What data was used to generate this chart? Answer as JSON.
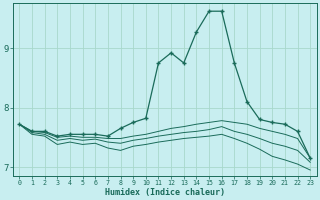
{
  "xlabel": "Humidex (Indice chaleur)",
  "bg_color": "#c8eef0",
  "grid_color": "#a8d8cc",
  "line_color": "#1a6b5a",
  "xlim": [
    -0.5,
    23.5
  ],
  "ylim": [
    6.85,
    9.75
  ],
  "yticks": [
    7,
    8,
    9
  ],
  "xticks": [
    0,
    1,
    2,
    3,
    4,
    5,
    6,
    7,
    8,
    9,
    10,
    11,
    12,
    13,
    14,
    15,
    16,
    17,
    18,
    19,
    20,
    21,
    22,
    23
  ],
  "main_line_x": [
    0,
    1,
    2,
    3,
    4,
    5,
    6,
    7,
    8,
    9,
    10,
    11,
    12,
    13,
    14,
    15,
    16,
    17,
    18,
    19,
    20,
    21,
    22,
    23
  ],
  "main_line_y": [
    7.72,
    7.6,
    7.6,
    7.52,
    7.55,
    7.55,
    7.55,
    7.52,
    7.65,
    7.75,
    7.82,
    8.75,
    8.92,
    8.75,
    9.27,
    9.62,
    9.62,
    8.75,
    8.1,
    7.8,
    7.75,
    7.72,
    7.6,
    7.15
  ],
  "line2_x": [
    0,
    1,
    2,
    3,
    4,
    5,
    6,
    7,
    8,
    9,
    10,
    11,
    12,
    13,
    14,
    15,
    16,
    17,
    18,
    19,
    20,
    21,
    22,
    23
  ],
  "line2_y": [
    7.72,
    7.6,
    7.58,
    7.5,
    7.52,
    7.5,
    7.5,
    7.48,
    7.48,
    7.52,
    7.55,
    7.6,
    7.65,
    7.68,
    7.72,
    7.75,
    7.78,
    7.75,
    7.72,
    7.65,
    7.6,
    7.55,
    7.48,
    7.15
  ],
  "line3_x": [
    0,
    1,
    2,
    3,
    4,
    5,
    6,
    7,
    8,
    9,
    10,
    11,
    12,
    13,
    14,
    15,
    16,
    17,
    18,
    19,
    20,
    21,
    22,
    23
  ],
  "line3_y": [
    7.72,
    7.58,
    7.55,
    7.45,
    7.48,
    7.45,
    7.47,
    7.42,
    7.4,
    7.45,
    7.48,
    7.52,
    7.55,
    7.58,
    7.6,
    7.63,
    7.68,
    7.6,
    7.55,
    7.48,
    7.4,
    7.35,
    7.28,
    7.08
  ],
  "line4_x": [
    0,
    1,
    2,
    3,
    4,
    5,
    6,
    7,
    8,
    9,
    10,
    11,
    12,
    13,
    14,
    15,
    16,
    17,
    18,
    19,
    20,
    21,
    22,
    23
  ],
  "line4_y": [
    7.72,
    7.55,
    7.52,
    7.38,
    7.42,
    7.38,
    7.4,
    7.32,
    7.28,
    7.35,
    7.38,
    7.42,
    7.45,
    7.48,
    7.5,
    7.52,
    7.55,
    7.48,
    7.4,
    7.3,
    7.18,
    7.12,
    7.05,
    6.95
  ]
}
